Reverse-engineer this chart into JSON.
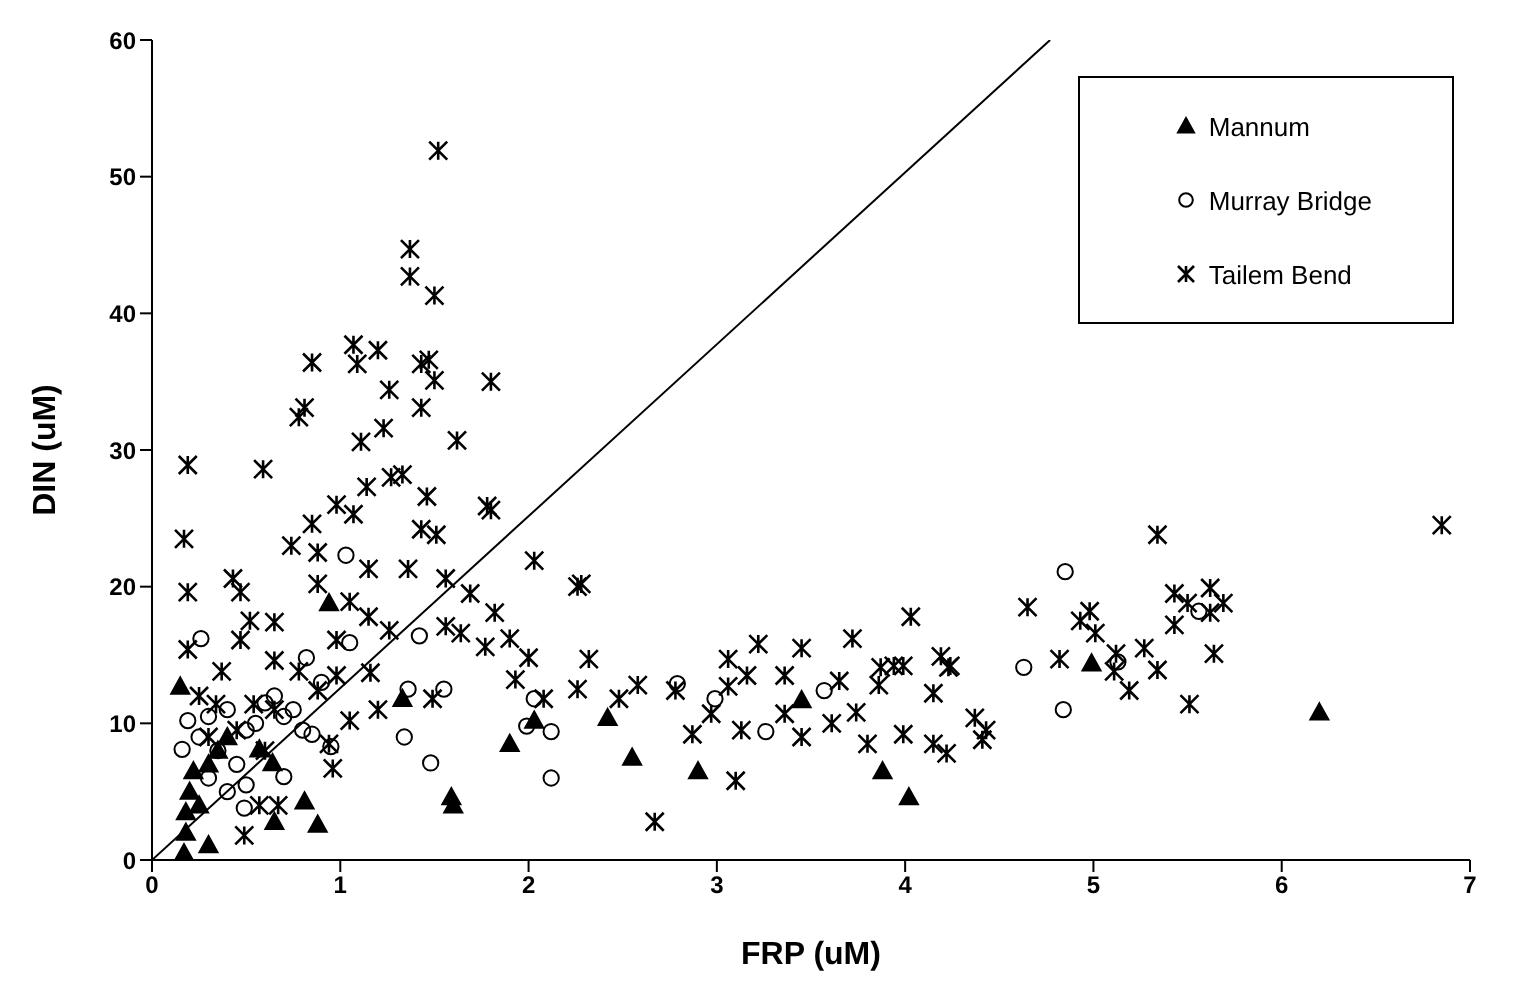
{
  "chart_data": {
    "type": "scatter",
    "xlabel": "FRP (uM)",
    "ylabel": "DIN (uM)",
    "xlim": [
      0,
      7
    ],
    "xticks": [
      0,
      1,
      2,
      3,
      4,
      5,
      6,
      7
    ],
    "ylim": [
      0,
      60
    ],
    "yticks": [
      0,
      10,
      20,
      30,
      40,
      50,
      60
    ],
    "grid": false,
    "legend": "top right",
    "series": [
      {
        "name": "Mannum",
        "marker": "triangle",
        "color": "#000000",
        "x": [
          0.15,
          0.17,
          0.18,
          0.18,
          0.2,
          0.22,
          0.25,
          0.3,
          0.3,
          0.35,
          0.4,
          0.57,
          0.64,
          0.65,
          0.81,
          0.88,
          0.94,
          1.33,
          1.59,
          1.6,
          1.9,
          2.03,
          2.42,
          2.55,
          2.9,
          3.45,
          3.88,
          4.02,
          4.99,
          6.2
        ],
        "values": [
          12.7,
          0.5,
          2,
          3.5,
          5,
          6.5,
          4,
          7,
          1.1,
          8,
          9,
          8.1,
          7.1,
          2.8,
          4.3,
          2.6,
          18.8,
          11.8,
          4.6,
          4,
          8.5,
          10.2,
          10.4,
          7.5,
          6.5,
          11.7,
          6.5,
          4.6,
          14.4,
          10.8
        ]
      },
      {
        "name": "Murray Bridge",
        "marker": "circle",
        "color": "#000000",
        "x": [
          0.16,
          0.19,
          0.25,
          0.26,
          0.3,
          0.3,
          0.35,
          0.4,
          0.4,
          0.45,
          0.49,
          0.5,
          0.5,
          0.55,
          0.6,
          0.65,
          0.7,
          0.7,
          0.75,
          0.8,
          0.82,
          0.85,
          0.9,
          0.95,
          1.03,
          1.05,
          1.34,
          1.36,
          1.42,
          1.48,
          1.55,
          1.99,
          2.03,
          2.12,
          2.12,
          2.79,
          2.99,
          3.26,
          3.57,
          4.63,
          4.84,
          4.85,
          5.13,
          5.56
        ],
        "values": [
          8.1,
          10.2,
          9,
          16.2,
          10.5,
          6,
          8,
          11,
          5,
          7,
          3.8,
          9.5,
          5.5,
          10,
          11.5,
          12,
          6.1,
          10.5,
          11,
          9.5,
          14.8,
          9.2,
          13,
          8.3,
          22.3,
          15.9,
          9,
          12.5,
          16.4,
          7.1,
          12.5,
          9.8,
          11.8,
          9.4,
          6,
          12.9,
          11.8,
          9.4,
          12.4,
          14.1,
          11,
          21.1,
          14.5,
          18.2
        ]
      },
      {
        "name": "Tailem Bend",
        "marker": "cross",
        "color": "#000000",
        "x": [
          0.17,
          0.19,
          0.19,
          0.19,
          0.34,
          0.37,
          0.43,
          0.47,
          0.47,
          0.49,
          0.52,
          0.54,
          0.57,
          0.59,
          0.65,
          0.65,
          0.65,
          0.67,
          0.74,
          0.78,
          0.78,
          0.81,
          0.85,
          0.85,
          0.88,
          0.88,
          0.88,
          0.94,
          0.96,
          0.98,
          0.98,
          0.98,
          1.05,
          1.05,
          1.07,
          1.07,
          1.09,
          1.11,
          1.14,
          1.15,
          1.15,
          1.16,
          1.2,
          1.2,
          1.23,
          1.26,
          1.26,
          1.27,
          1.33,
          1.36,
          1.37,
          1.37,
          1.43,
          1.43,
          1.43,
          1.46,
          1.47,
          1.49,
          1.5,
          1.5,
          1.51,
          1.52,
          1.56,
          1.56,
          1.62,
          1.64,
          1.69,
          1.77,
          1.78,
          1.8,
          1.8,
          1.82,
          1.9,
          1.93,
          2.0,
          2.03,
          2.08,
          2.26,
          2.28,
          2.26,
          2.32,
          2.48,
          2.58,
          2.67,
          2.78,
          2.87,
          2.97,
          3.06,
          3.06,
          3.1,
          3.13,
          3.16,
          3.22,
          3.36,
          3.36,
          3.45,
          3.45,
          3.61,
          3.65,
          3.72,
          3.74,
          3.8,
          3.86,
          3.87,
          3.94,
          3.99,
          3.99,
          4.03,
          4.15,
          4.15,
          4.19,
          4.22,
          4.23,
          4.24,
          4.37,
          4.41,
          4.43,
          4.65,
          4.82,
          4.93,
          4.98,
          5.01,
          5.11,
          5.12,
          5.19,
          5.27,
          5.34,
          5.34,
          5.43,
          5.43,
          5.5,
          5.51,
          5.62,
          5.62,
          5.64,
          5.69,
          6.85,
          0.25,
          0.3,
          0.45,
          0.6
        ],
        "values": [
          23.5,
          28.9,
          19.6,
          15.4,
          11.4,
          13.8,
          20.6,
          19.6,
          16.1,
          1.8,
          17.5,
          11.4,
          4.0,
          28.6,
          17.4,
          14.6,
          11.0,
          4.0,
          23.0,
          32.4,
          13.8,
          33.1,
          36.4,
          24.6,
          22.5,
          20.2,
          12.4,
          8.5,
          6.7,
          26.0,
          16.1,
          13.5,
          18.9,
          10.2,
          37.7,
          25.3,
          36.3,
          30.6,
          27.3,
          21.3,
          17.8,
          13.7,
          37.3,
          11.0,
          31.6,
          34.4,
          16.8,
          28.0,
          28.2,
          21.3,
          44.7,
          42.7,
          36.3,
          33.1,
          24.2,
          26.6,
          36.6,
          11.8,
          41.3,
          35.1,
          23.8,
          51.9,
          20.6,
          17.1,
          30.7,
          16.6,
          19.5,
          15.6,
          25.9,
          35.0,
          25.6,
          18.1,
          16.2,
          13.2,
          14.8,
          21.9,
          11.8,
          20.0,
          20.2,
          12.5,
          14.7,
          11.8,
          12.8,
          2.8,
          12.4,
          9.2,
          10.7,
          14.7,
          12.7,
          5.8,
          9.5,
          13.5,
          15.8,
          13.5,
          10.7,
          15.5,
          9.0,
          10.0,
          13.1,
          16.2,
          10.8,
          8.5,
          12.8,
          14.1,
          14.2,
          14.2,
          9.2,
          17.8,
          12.2,
          8.5,
          14.9,
          7.8,
          14.1,
          14.2,
          10.4,
          8.8,
          9.5,
          18.5,
          14.7,
          17.5,
          18.2,
          16.6,
          13.8,
          15.1,
          12.4,
          15.5,
          23.8,
          13.9,
          19.5,
          17.2,
          18.8,
          11.4,
          19.9,
          18.1,
          15.1,
          18.8,
          24.5,
          12,
          9,
          9.5,
          8
        ]
      },
      {
        "type": "line",
        "color": "#000000",
        "line_style": "solid",
        "x": [
          0,
          4.77
        ],
        "values": [
          0,
          60
        ]
      }
    ]
  }
}
